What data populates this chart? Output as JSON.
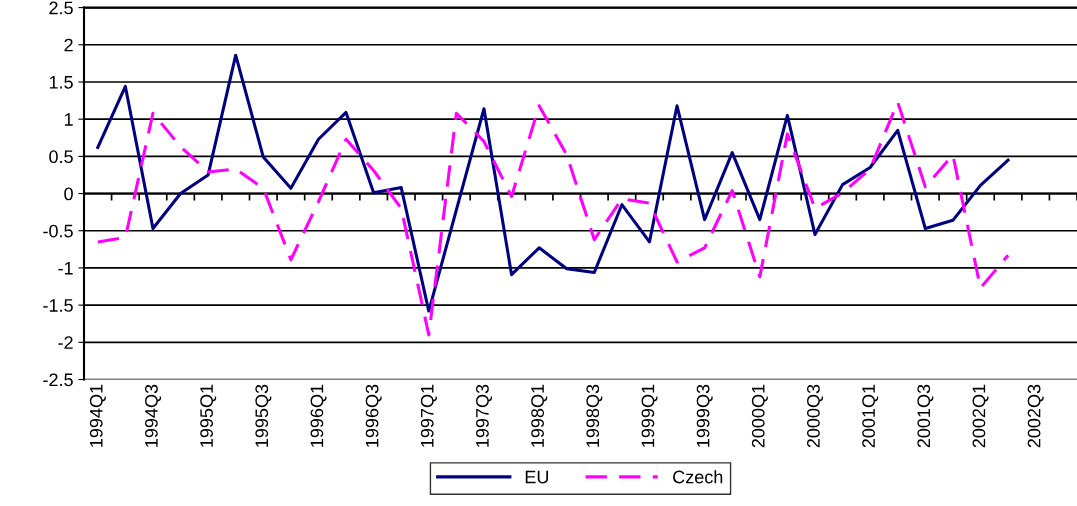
{
  "chart_data": {
    "type": "line",
    "categories": [
      "1994Q1",
      null,
      "1994Q3",
      null,
      "1995Q1",
      null,
      "1995Q3",
      null,
      "1996Q1",
      null,
      "1996Q3",
      null,
      "1997Q1",
      null,
      "1997Q3",
      null,
      "1998Q1",
      null,
      "1998Q3",
      null,
      "1999Q1",
      null,
      "1999Q3",
      null,
      "2000Q1",
      null,
      "2000Q3",
      null,
      "2001Q1",
      null,
      "2001Q3",
      null,
      "2002Q1",
      null,
      "2002Q3",
      null
    ],
    "series": [
      {
        "name": "EU",
        "color": "#000080",
        "line_style": "solid",
        "values": [
          0.62,
          1.44,
          -0.47,
          0.0,
          0.25,
          1.86,
          0.49,
          0.07,
          0.73,
          1.09,
          0.01,
          0.08,
          -1.58,
          -0.22,
          1.14,
          -1.09,
          -0.73,
          -1.01,
          -1.06,
          -0.15,
          -0.65,
          1.18,
          -0.35,
          0.55,
          -0.35,
          1.05,
          -0.55,
          0.12,
          0.35,
          0.85,
          -0.47,
          -0.36,
          0.11,
          0.45,
          null,
          null
        ]
      },
      {
        "name": "Czech",
        "color": "#ff00ff",
        "line_style": "dashed",
        "values": [
          -0.65,
          -0.59,
          1.08,
          0.63,
          0.29,
          0.33,
          0.07,
          -0.89,
          -0.11,
          0.73,
          0.31,
          -0.2,
          -1.9,
          1.08,
          0.7,
          -0.04,
          1.18,
          0.52,
          -0.62,
          -0.07,
          -0.13,
          -0.92,
          -0.73,
          0.04,
          -1.12,
          0.8,
          -0.2,
          0.01,
          0.33,
          1.23,
          0.09,
          0.52,
          -1.27,
          -0.83,
          null,
          null
        ]
      }
    ],
    "ylim": [
      -2.5,
      2.5
    ],
    "yticks": [
      -2.5,
      -2,
      -1.5,
      -1,
      -0.5,
      0,
      0.5,
      1,
      1.5,
      2,
      2.5
    ],
    "grid": "y",
    "legend": "bottom"
  }
}
